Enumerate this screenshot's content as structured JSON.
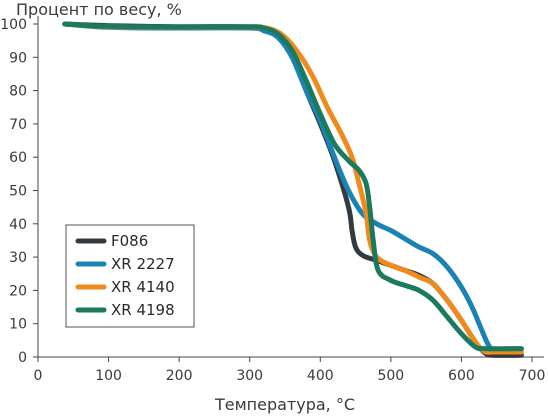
{
  "chart_data": {
    "type": "line",
    "ylabel": "Процент по весу, %",
    "xlabel": "Температура, °C",
    "xlim": [
      0,
      700
    ],
    "ylim": [
      0,
      100
    ],
    "xticks": [
      0,
      100,
      200,
      300,
      400,
      500,
      600,
      700
    ],
    "yticks": [
      0,
      10,
      20,
      30,
      40,
      50,
      60,
      70,
      80,
      90,
      100
    ],
    "grid": false,
    "legend_position": "bottom-left",
    "series": [
      {
        "name": "F086",
        "color": "#333a40",
        "points": [
          [
            38,
            100
          ],
          [
            100,
            99.5
          ],
          [
            200,
            99.2
          ],
          [
            300,
            99.2
          ],
          [
            320,
            98.8
          ],
          [
            340,
            96.5
          ],
          [
            360,
            91
          ],
          [
            380,
            80
          ],
          [
            400,
            70
          ],
          [
            420,
            59
          ],
          [
            440,
            45
          ],
          [
            445,
            38
          ],
          [
            450,
            33
          ],
          [
            460,
            30.5
          ],
          [
            480,
            29
          ],
          [
            500,
            27.5
          ],
          [
            520,
            26
          ],
          [
            540,
            24.5
          ],
          [
            560,
            22
          ],
          [
            580,
            17
          ],
          [
            600,
            11
          ],
          [
            615,
            6
          ],
          [
            625,
            3
          ],
          [
            635,
            1
          ],
          [
            645,
            0.5
          ],
          [
            685,
            0.5
          ]
        ]
      },
      {
        "name": "XR 2227",
        "color": "#1a82b5",
        "points": [
          [
            38,
            100
          ],
          [
            100,
            99
          ],
          [
            200,
            98.8
          ],
          [
            300,
            98.8
          ],
          [
            320,
            98
          ],
          [
            340,
            96
          ],
          [
            360,
            90
          ],
          [
            380,
            80
          ],
          [
            400,
            71
          ],
          [
            420,
            60
          ],
          [
            440,
            50
          ],
          [
            460,
            43
          ],
          [
            480,
            40
          ],
          [
            500,
            38
          ],
          [
            520,
            35.5
          ],
          [
            540,
            33
          ],
          [
            560,
            31
          ],
          [
            580,
            27
          ],
          [
            600,
            21
          ],
          [
            615,
            15
          ],
          [
            625,
            10
          ],
          [
            635,
            5
          ],
          [
            640,
            3
          ],
          [
            645,
            2.5
          ],
          [
            685,
            2.5
          ]
        ]
      },
      {
        "name": "XR 4140",
        "color": "#f08a1d",
        "points": [
          [
            38,
            100
          ],
          [
            100,
            99.2
          ],
          [
            200,
            99
          ],
          [
            300,
            99
          ],
          [
            330,
            98.5
          ],
          [
            350,
            96
          ],
          [
            370,
            91
          ],
          [
            390,
            84
          ],
          [
            410,
            75
          ],
          [
            430,
            67
          ],
          [
            445,
            60
          ],
          [
            455,
            52
          ],
          [
            465,
            43
          ],
          [
            470,
            35
          ],
          [
            480,
            30
          ],
          [
            500,
            27.5
          ],
          [
            520,
            26
          ],
          [
            540,
            24
          ],
          [
            560,
            22
          ],
          [
            580,
            17
          ],
          [
            600,
            11
          ],
          [
            615,
            6
          ],
          [
            625,
            3
          ],
          [
            635,
            1.5
          ],
          [
            645,
            1.5
          ],
          [
            685,
            1.5
          ]
        ]
      },
      {
        "name": "XR 4198",
        "color": "#1b7a5e",
        "points": [
          [
            38,
            100
          ],
          [
            100,
            99.3
          ],
          [
            200,
            99.1
          ],
          [
            300,
            99.1
          ],
          [
            320,
            98.8
          ],
          [
            340,
            97
          ],
          [
            360,
            92
          ],
          [
            380,
            83
          ],
          [
            400,
            73
          ],
          [
            420,
            64
          ],
          [
            440,
            59
          ],
          [
            455,
            56
          ],
          [
            465,
            52
          ],
          [
            470,
            45
          ],
          [
            475,
            35
          ],
          [
            482,
            26
          ],
          [
            500,
            23
          ],
          [
            520,
            21.5
          ],
          [
            540,
            20
          ],
          [
            560,
            17
          ],
          [
            580,
            12
          ],
          [
            600,
            7
          ],
          [
            620,
            3
          ],
          [
            635,
            2.5
          ],
          [
            685,
            2.5
          ]
        ]
      }
    ]
  }
}
